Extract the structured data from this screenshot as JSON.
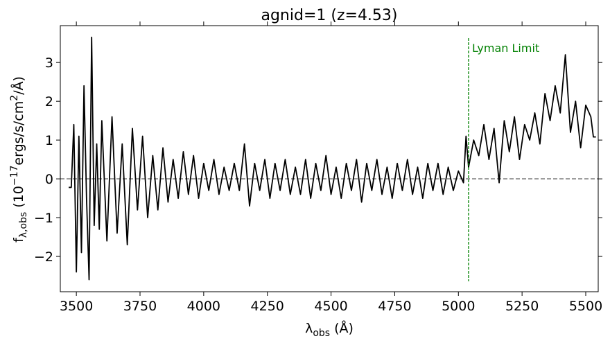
{
  "chart_data": {
    "type": "line",
    "title": "agnid=1 (z=4.53)",
    "xlabel": [
      "λ",
      "obs",
      " (Å)"
    ],
    "ylabel": [
      "f",
      "λ,obs",
      " (10",
      "−17",
      "ergs/s/cm",
      "2",
      "/Å)"
    ],
    "x": [
      3470,
      3480,
      3490,
      3500,
      3510,
      3520,
      3530,
      3540,
      3550,
      3560,
      3570,
      3580,
      3590,
      3600,
      3620,
      3640,
      3660,
      3680,
      3700,
      3720,
      3740,
      3760,
      3780,
      3800,
      3820,
      3840,
      3860,
      3880,
      3900,
      3920,
      3940,
      3960,
      3980,
      4000,
      4020,
      4040,
      4060,
      4080,
      4100,
      4120,
      4140,
      4160,
      4180,
      4200,
      4220,
      4240,
      4260,
      4280,
      4300,
      4320,
      4340,
      4360,
      4380,
      4400,
      4420,
      4440,
      4460,
      4480,
      4500,
      4520,
      4540,
      4560,
      4580,
      4600,
      4620,
      4640,
      4660,
      4680,
      4700,
      4720,
      4740,
      4760,
      4780,
      4800,
      4820,
      4840,
      4860,
      4880,
      4900,
      4920,
      4940,
      4960,
      4980,
      5000,
      5020,
      5030,
      5040,
      5060,
      5080,
      5100,
      5120,
      5140,
      5160,
      5180,
      5200,
      5220,
      5240,
      5260,
      5280,
      5300,
      5320,
      5340,
      5360,
      5380,
      5400,
      5420,
      5440,
      5460,
      5480,
      5500,
      5520,
      5530,
      5540
    ],
    "series": [
      {
        "color": "#000000",
        "values": [
          -0.22,
          -0.22,
          1.4,
          -2.4,
          1.1,
          -1.9,
          2.4,
          -0.5,
          -2.6,
          3.65,
          -1.2,
          0.9,
          -1.3,
          1.5,
          -1.6,
          1.6,
          -1.4,
          0.9,
          -1.7,
          1.3,
          -0.8,
          1.1,
          -1.0,
          0.6,
          -0.8,
          0.8,
          -0.6,
          0.5,
          -0.5,
          0.7,
          -0.4,
          0.6,
          -0.5,
          0.4,
          -0.3,
          0.5,
          -0.4,
          0.3,
          -0.3,
          0.4,
          -0.3,
          0.9,
          -0.7,
          0.4,
          -0.3,
          0.5,
          -0.5,
          0.4,
          -0.3,
          0.5,
          -0.4,
          0.3,
          -0.4,
          0.5,
          -0.5,
          0.4,
          -0.3,
          0.6,
          -0.4,
          0.3,
          -0.5,
          0.4,
          -0.3,
          0.5,
          -0.6,
          0.4,
          -0.3,
          0.5,
          -0.4,
          0.3,
          -0.5,
          0.4,
          -0.3,
          0.5,
          -0.4,
          0.3,
          -0.5,
          0.4,
          -0.3,
          0.4,
          -0.4,
          0.3,
          -0.3,
          0.2,
          -0.1,
          1.1,
          0.3,
          1.0,
          0.6,
          1.4,
          0.5,
          1.3,
          -0.1,
          1.5,
          0.7,
          1.6,
          0.5,
          1.4,
          1.0,
          1.7,
          0.9,
          2.2,
          1.5,
          2.4,
          1.7,
          3.2,
          1.2,
          2.0,
          0.8,
          1.9,
          1.6,
          1.08,
          1.08
        ]
      }
    ],
    "xlim": [
      3437,
      5549
    ],
    "ylim": [
      -2.91,
      3.95
    ],
    "xticks": [
      3500,
      3750,
      4000,
      4250,
      4500,
      4750,
      5000,
      5250,
      5500
    ],
    "yticks": [
      {
        "value": -2,
        "label": "−2"
      },
      {
        "value": -1,
        "label": "−1"
      },
      0,
      1,
      2,
      3
    ],
    "hlines": [
      {
        "y": 0,
        "color": "#808080"
      }
    ],
    "annotations": [
      {
        "text": "Lyman Limit",
        "x": 5040,
        "color": "#008000"
      }
    ]
  }
}
